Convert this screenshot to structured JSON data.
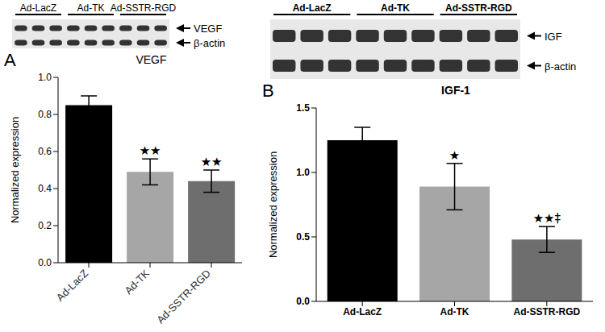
{
  "chart_data": [
    {
      "type": "bar",
      "panel": "A",
      "title": "VEGF",
      "categories": [
        "Ad-LacZ",
        "Ad-TK",
        "Ad-SSTR-RGD"
      ],
      "values": [
        0.85,
        0.49,
        0.44
      ],
      "errors": [
        0.05,
        0.07,
        0.06
      ],
      "colors": [
        "#000000",
        "#a6a6a6",
        "#6e6e6e"
      ],
      "y_label": "Normalized expression",
      "ylim": [
        0,
        1
      ],
      "yticks": [
        {
          "value": 0,
          "label": "0.0"
        },
        {
          "value": 0.2,
          "label": "0.2"
        },
        {
          "value": 0.4,
          "label": "0.4"
        },
        {
          "value": 0.6,
          "label": "0.6"
        },
        {
          "value": 0.8,
          "label": "0.8"
        },
        {
          "value": 1,
          "label": "1.0"
        }
      ],
      "annotations": [
        {
          "category": "Ad-TK",
          "text": "★★"
        },
        {
          "category": "Ad-SSTR-RGD",
          "text": "★★"
        }
      ],
      "blot": {
        "bands": [
          "VEGF",
          "β-actin"
        ]
      }
    },
    {
      "type": "bar",
      "panel": "B",
      "title": "IGF-1",
      "categories": [
        "Ad-LacZ",
        "Ad-TK",
        "Ad-SSTR-RGD"
      ],
      "values": [
        1.25,
        0.89,
        0.48
      ],
      "errors": [
        0.1,
        0.18,
        0.1
      ],
      "colors": [
        "#000000",
        "#a6a6a6",
        "#6e6e6e"
      ],
      "y_label": "Normalized expression",
      "ylim": [
        0,
        1.5
      ],
      "yticks": [
        {
          "value": 0,
          "label": "0.0"
        },
        {
          "value": 0.5,
          "label": "0.5"
        },
        {
          "value": 1,
          "label": "1.0"
        },
        {
          "value": 1.5,
          "label": "1.5"
        }
      ],
      "annotations": [
        {
          "category": "Ad-TK",
          "text": "★"
        },
        {
          "category": "Ad-SSTR-RGD",
          "text": "★★‡"
        }
      ],
      "blot": {
        "bands": [
          "IGF",
          "β-actin"
        ]
      }
    }
  ]
}
